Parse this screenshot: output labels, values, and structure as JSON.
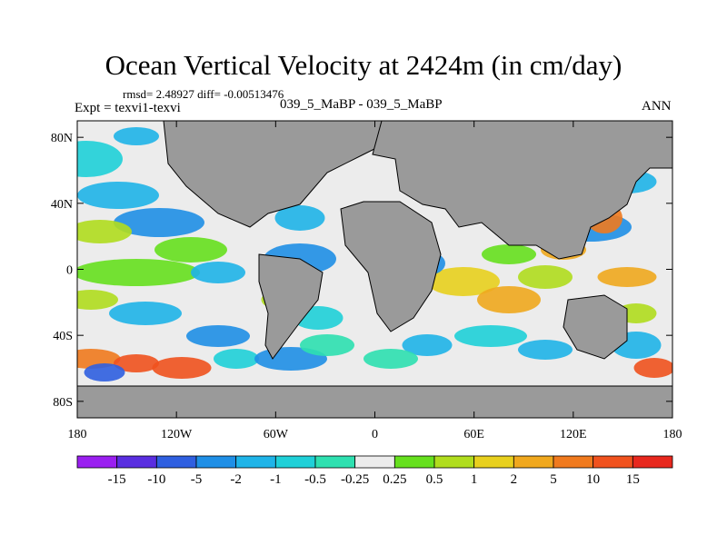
{
  "title": "Ocean Vertical Velocity at 2424m (in cm/day)",
  "stats": "rmsd= 2.48927 diff= -0.00513476",
  "expt": "Expt = texvi1-texvi",
  "case": "039_5_MaBP - 039_5_MaBP",
  "season": "ANN",
  "lat_labels": [
    "80N",
    "40N",
    "0",
    "40S",
    "80S"
  ],
  "lon_labels": [
    "180",
    "120W",
    "60W",
    "0",
    "60E",
    "120E",
    "180"
  ],
  "colorbar": {
    "labels": [
      "-15",
      "-10",
      "-5",
      "-2",
      "-1",
      "-0.5",
      "-0.25",
      "0.25",
      "0.5",
      "1",
      "2",
      "5",
      "10",
      "15"
    ],
    "colors": [
      "#9a1ff0",
      "#5a2ee0",
      "#2f5fe0",
      "#1f8fe6",
      "#1fb4e8",
      "#1fd0d8",
      "#2ee0b0",
      "#ececec",
      "#66e01e",
      "#b0dd1e",
      "#e8d01e",
      "#f0a81e",
      "#f07a1e",
      "#f0521e",
      "#e8281e"
    ]
  },
  "land_color": "#9a9a9a"
}
